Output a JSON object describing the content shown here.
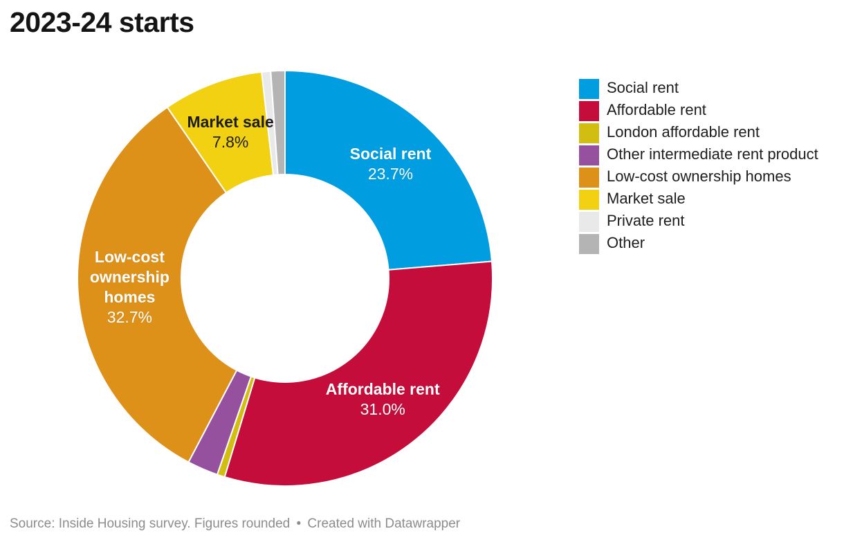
{
  "title": "2023-24 starts",
  "footer": {
    "source_text": "Source: Inside Housing survey. Figures rounded",
    "separator": "•",
    "credit": "Created with Datawrapper"
  },
  "chart_data": {
    "type": "pie",
    "subtype": "donut",
    "title": "2023-24 starts",
    "start_angle_deg": 0,
    "direction": "clockwise",
    "inner_radius_ratio": 0.5,
    "separator_color": "#ffffff",
    "legend_position": "right",
    "slices": [
      {
        "label": "Social rent",
        "value": 23.7,
        "display": "23.7%",
        "color": "#009ee0",
        "label_shown": true,
        "label_color": "#ffffff",
        "label_lines": [
          "Social rent"
        ]
      },
      {
        "label": "Affordable rent",
        "value": 31.0,
        "display": "31.0%",
        "color": "#c40d3a",
        "label_shown": true,
        "label_color": "#ffffff",
        "label_lines": [
          "Affordable rent"
        ]
      },
      {
        "label": "London affordable rent",
        "value": 0.6,
        "display": "",
        "color": "#d2bd11",
        "label_shown": false,
        "label_color": "",
        "label_lines": []
      },
      {
        "label": "Other intermediate rent product",
        "value": 2.4,
        "display": "",
        "color": "#96519e",
        "label_shown": false,
        "label_color": "",
        "label_lines": []
      },
      {
        "label": "Low-cost ownership homes",
        "value": 32.7,
        "display": "32.7%",
        "color": "#de9119",
        "label_shown": true,
        "label_color": "#ffffff",
        "label_lines": [
          "Low-cost",
          "ownership",
          "homes"
        ]
      },
      {
        "label": "Market sale",
        "value": 7.8,
        "display": "7.8%",
        "color": "#f2d113",
        "label_shown": true,
        "label_color": "#1d1d1d",
        "label_lines": [
          "Market sale"
        ]
      },
      {
        "label": "Private rent",
        "value": 0.7,
        "display": "",
        "color": "#e9e9e9",
        "label_shown": false,
        "label_color": "",
        "label_lines": []
      },
      {
        "label": "Other",
        "value": 1.1,
        "display": "",
        "color": "#b4b4b4",
        "label_shown": false,
        "label_color": "",
        "label_lines": []
      }
    ]
  }
}
